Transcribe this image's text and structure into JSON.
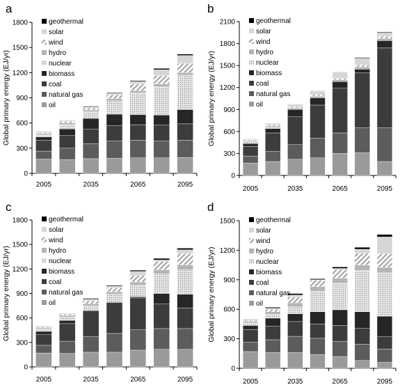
{
  "colors": {
    "oil": "#9a9a9a",
    "natural gas": "#5c5c5c",
    "coal": "#3c3c3c",
    "biomass": "#262626",
    "nuclear": "pattern-dots-light",
    "hydro": "#b4b4b4",
    "wind": "pattern-hatch",
    "solar": "#d6d6d6",
    "geothermal": "#000000"
  },
  "chart_data": [
    {
      "panel": "a",
      "type": "bar",
      "stacked": true,
      "ylabel": "Global primary energy (EJ/yr)",
      "ylim": [
        0,
        1800
      ],
      "yticks": [
        "0",
        "300",
        "600",
        "900",
        "1200",
        "1500",
        "1800"
      ],
      "xtick_labels": [
        "2005",
        "2035",
        "2065",
        "2095"
      ],
      "legend": [
        "geothermal",
        "solar",
        "wind",
        "hydro",
        "nuclear",
        "biomass",
        "coal",
        "natural gas",
        "oil"
      ],
      "categories": [
        "2005",
        "2020",
        "2035",
        "2050",
        "2065",
        "2080",
        "2095"
      ],
      "series": [
        {
          "name": "oil",
          "values": [
            170,
            165,
            175,
            180,
            185,
            185,
            190
          ]
        },
        {
          "name": "natural gas",
          "values": [
            95,
            135,
            180,
            205,
            210,
            200,
            205
          ]
        },
        {
          "name": "coal",
          "values": [
            130,
            150,
            170,
            185,
            185,
            190,
            195
          ]
        },
        {
          "name": "biomass",
          "values": [
            40,
            80,
            130,
            135,
            120,
            120,
            170
          ]
        },
        {
          "name": "nuclear",
          "values": [
            25,
            50,
            80,
            160,
            260,
            340,
            410
          ]
        },
        {
          "name": "hydro",
          "values": [
            15,
            20,
            20,
            25,
            25,
            30,
            30
          ]
        },
        {
          "name": "wind",
          "values": [
            10,
            20,
            25,
            45,
            80,
            100,
            110
          ]
        },
        {
          "name": "solar",
          "values": [
            5,
            8,
            12,
            20,
            30,
            70,
            95
          ]
        },
        {
          "name": "geothermal",
          "values": [
            5,
            5,
            8,
            8,
            10,
            15,
            15
          ]
        }
      ]
    },
    {
      "panel": "b",
      "type": "bar",
      "stacked": true,
      "ylabel": "Global primary energy (EJ/yr)",
      "ylim": [
        0,
        2100
      ],
      "yticks": [
        "0",
        "300",
        "600",
        "900",
        "1200",
        "1500",
        "1800",
        "2100"
      ],
      "xtick_labels": [
        "2005",
        "2035",
        "2065",
        "2095"
      ],
      "legend": [
        "geothermal",
        "solar",
        "wind",
        "hydro",
        "nuclear",
        "biomass",
        "coal",
        "natural gas",
        "oil"
      ],
      "categories": [
        "2005",
        "2020",
        "2035",
        "2050",
        "2065",
        "2080",
        "2095"
      ],
      "series": [
        {
          "name": "oil",
          "values": [
            170,
            190,
            220,
            240,
            300,
            310,
            190
          ]
        },
        {
          "name": "natural gas",
          "values": [
            95,
            140,
            200,
            270,
            280,
            340,
            460
          ]
        },
        {
          "name": "coal",
          "values": [
            130,
            250,
            380,
            450,
            610,
            750,
            1090
          ]
        },
        {
          "name": "biomass",
          "values": [
            40,
            60,
            100,
            100,
            90,
            50,
            100
          ]
        },
        {
          "name": "nuclear",
          "values": [
            25,
            15,
            0,
            0,
            0,
            0,
            0
          ]
        },
        {
          "name": "hydro",
          "values": [
            15,
            20,
            20,
            20,
            25,
            30,
            30
          ]
        },
        {
          "name": "wind",
          "values": [
            10,
            15,
            15,
            20,
            20,
            30,
            30
          ]
        },
        {
          "name": "solar",
          "values": [
            5,
            15,
            30,
            50,
            80,
            90,
            50
          ]
        },
        {
          "name": "geothermal",
          "values": [
            5,
            5,
            5,
            5,
            5,
            10,
            10
          ]
        }
      ]
    },
    {
      "panel": "c",
      "type": "bar",
      "stacked": true,
      "ylabel": "Global primary energy (EJ/yr)",
      "ylim": [
        0,
        1800
      ],
      "yticks": [
        "0",
        "300",
        "600",
        "900",
        "1200",
        "1500",
        "1800"
      ],
      "xtick_labels": [
        "2005",
        "2035",
        "2065",
        "2095"
      ],
      "legend": [
        "geothermal",
        "solar",
        "wind",
        "hydro",
        "nuclear",
        "biomass",
        "coal",
        "natural gas",
        "oil"
      ],
      "categories": [
        "2005",
        "2020",
        "2035",
        "2050",
        "2065",
        "2080",
        "2095"
      ],
      "series": [
        {
          "name": "oil",
          "values": [
            170,
            165,
            180,
            180,
            205,
            215,
            215
          ]
        },
        {
          "name": "natural gas",
          "values": [
            95,
            150,
            190,
            230,
            250,
            255,
            255
          ]
        },
        {
          "name": "coal",
          "values": [
            130,
            215,
            320,
            380,
            390,
            300,
            250
          ]
        },
        {
          "name": "biomass",
          "values": [
            40,
            40,
            0,
            0,
            15,
            130,
            170
          ]
        },
        {
          "name": "nuclear",
          "values": [
            25,
            40,
            60,
            100,
            140,
            240,
            300
          ]
        },
        {
          "name": "hydro",
          "values": [
            15,
            20,
            25,
            30,
            40,
            50,
            60
          ]
        },
        {
          "name": "wind",
          "values": [
            10,
            15,
            35,
            50,
            80,
            100,
            140
          ]
        },
        {
          "name": "solar",
          "values": [
            5,
            5,
            20,
            20,
            50,
            20,
            45
          ]
        },
        {
          "name": "geothermal",
          "values": [
            5,
            5,
            10,
            10,
            15,
            20,
            20
          ]
        }
      ]
    },
    {
      "panel": "d",
      "type": "bar",
      "stacked": true,
      "ylabel": "Global primary energy (EJ/yr)",
      "ylim": [
        0,
        1500
      ],
      "yticks": [
        "0",
        "300",
        "600",
        "900",
        "1200",
        "1500"
      ],
      "xtick_labels": [
        "2005",
        "2035",
        "2065",
        "2095"
      ],
      "legend": [
        "geothermal",
        "solar",
        "wind",
        "hydro",
        "nuclear",
        "biomass",
        "coal",
        "natural gas",
        "oil"
      ],
      "categories": [
        "2005",
        "2020",
        "2035",
        "2050",
        "2065",
        "2080",
        "2095"
      ],
      "series": [
        {
          "name": "oil",
          "values": [
            170,
            160,
            160,
            140,
            120,
            80,
            60
          ]
        },
        {
          "name": "natural gas",
          "values": [
            95,
            130,
            165,
            165,
            155,
            165,
            135
          ]
        },
        {
          "name": "coal",
          "values": [
            130,
            140,
            150,
            145,
            160,
            160,
            125
          ]
        },
        {
          "name": "biomass",
          "values": [
            40,
            80,
            80,
            125,
            160,
            170,
            210
          ]
        },
        {
          "name": "nuclear",
          "values": [
            25,
            40,
            70,
            210,
            270,
            420,
            440
          ]
        },
        {
          "name": "hydro",
          "values": [
            15,
            25,
            40,
            45,
            50,
            55,
            55
          ]
        },
        {
          "name": "wind",
          "values": [
            10,
            25,
            60,
            65,
            90,
            120,
            140
          ]
        },
        {
          "name": "solar",
          "values": [
            5,
            10,
            20,
            5,
            10,
            40,
            170
          ]
        },
        {
          "name": "geothermal",
          "values": [
            5,
            10,
            15,
            10,
            15,
            20,
            25
          ]
        }
      ]
    }
  ]
}
